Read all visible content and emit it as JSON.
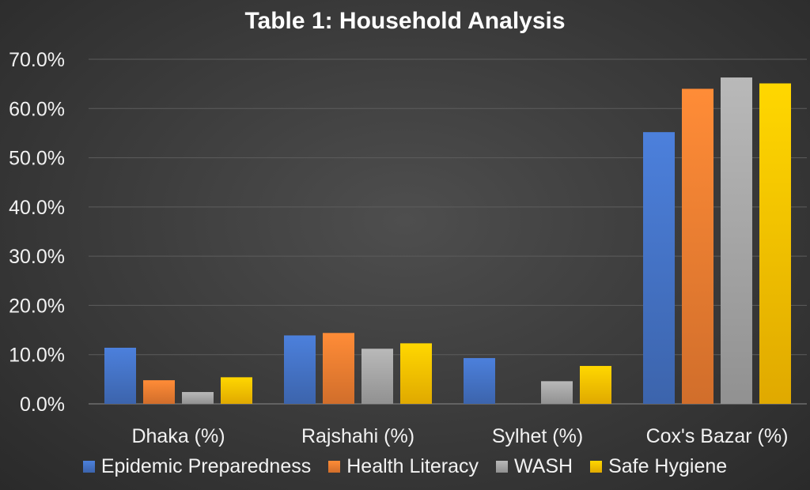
{
  "chart_data": {
    "type": "bar",
    "title": "Table 1: Household Analysis",
    "xlabel": "",
    "ylabel": "",
    "categories": [
      "Dhaka (%)",
      "Rajshahi (%)",
      "Sylhet (%)",
      "Cox's Bazar (%)"
    ],
    "series": [
      {
        "name": "Epidemic Preparedness",
        "color": "#4472c4",
        "values": [
          11.4,
          13.9,
          9.3,
          55.2
        ]
      },
      {
        "name": "Health Literacy",
        "color": "#ed7d31",
        "values": [
          4.8,
          14.4,
          0.0,
          64.0
        ]
      },
      {
        "name": "WASH",
        "color": "#a5a5a5",
        "values": [
          2.4,
          11.2,
          4.6,
          66.3
        ]
      },
      {
        "name": "Safe Hygiene",
        "color": "#ffc000",
        "values": [
          5.4,
          12.3,
          7.7,
          65.1
        ]
      }
    ],
    "ylim": [
      0,
      70
    ],
    "yticks": [
      "0.0%",
      "10.0%",
      "20.0%",
      "30.0%",
      "40.0%",
      "50.0%",
      "60.0%",
      "70.0%"
    ],
    "ytick_values": [
      0,
      10,
      20,
      30,
      40,
      50,
      60,
      70
    ],
    "grid": true,
    "legend_position": "bottom"
  }
}
